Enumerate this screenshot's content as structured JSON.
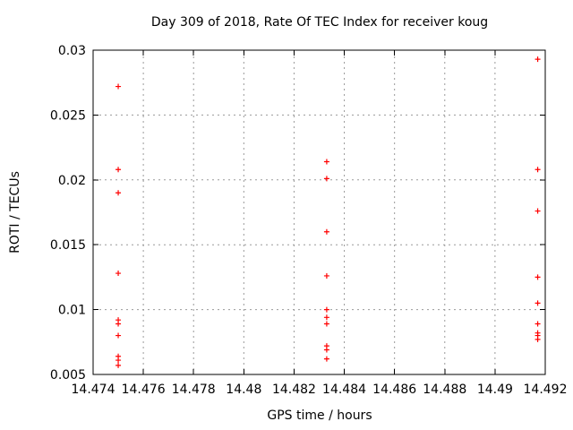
{
  "chart_data": {
    "type": "scatter",
    "title": "Day 309 of 2018, Rate Of TEC Index for receiver koug",
    "xlabel": "GPS time / hours",
    "ylabel": "ROTI / TECUs",
    "xlim": [
      14.474,
      14.492
    ],
    "ylim": [
      0.005,
      0.03
    ],
    "x_ticks": {
      "values": [
        14.474,
        14.476,
        14.478,
        14.48,
        14.482,
        14.484,
        14.486,
        14.488,
        14.49,
        14.492
      ],
      "labels": [
        "14.474",
        "14.476",
        "14.478",
        "14.48",
        "14.482",
        "14.484",
        "14.486",
        "14.488",
        "14.49",
        "14.492"
      ]
    },
    "y_ticks": {
      "values": [
        0.005,
        0.01,
        0.015,
        0.02,
        0.025,
        0.03
      ],
      "labels": [
        "0.005",
        "0.01",
        "0.015",
        "0.02",
        "0.025",
        "0.03"
      ]
    },
    "grid": true,
    "legend_position": "none",
    "marker": {
      "shape": "plus",
      "size": 7,
      "color": "#ff0000"
    },
    "colors": {
      "background": "#ffffff",
      "border": "#000000",
      "grid": "#9a9a9a",
      "text": "#000000",
      "marker": "#ff0000"
    },
    "series": [
      {
        "name": "roti",
        "color": "#ff0000",
        "points": [
          [
            14.475,
            0.0272
          ],
          [
            14.475,
            0.0208
          ],
          [
            14.475,
            0.019
          ],
          [
            14.475,
            0.0128
          ],
          [
            14.475,
            0.0092
          ],
          [
            14.475,
            0.0089
          ],
          [
            14.475,
            0.008
          ],
          [
            14.475,
            0.0064
          ],
          [
            14.475,
            0.0061
          ],
          [
            14.475,
            0.0057
          ],
          [
            14.4833,
            0.0214
          ],
          [
            14.4833,
            0.0201
          ],
          [
            14.4833,
            0.016
          ],
          [
            14.4833,
            0.0126
          ],
          [
            14.4833,
            0.01
          ],
          [
            14.4833,
            0.0094
          ],
          [
            14.4833,
            0.0089
          ],
          [
            14.4833,
            0.0072
          ],
          [
            14.4833,
            0.0069
          ],
          [
            14.4833,
            0.0062
          ],
          [
            14.4917,
            0.0293
          ],
          [
            14.4917,
            0.0208
          ],
          [
            14.4917,
            0.0176
          ],
          [
            14.4917,
            0.0125
          ],
          [
            14.4917,
            0.0105
          ],
          [
            14.4917,
            0.0089
          ],
          [
            14.4917,
            0.0082
          ],
          [
            14.4917,
            0.008
          ],
          [
            14.4917,
            0.0077
          ]
        ]
      }
    ]
  }
}
